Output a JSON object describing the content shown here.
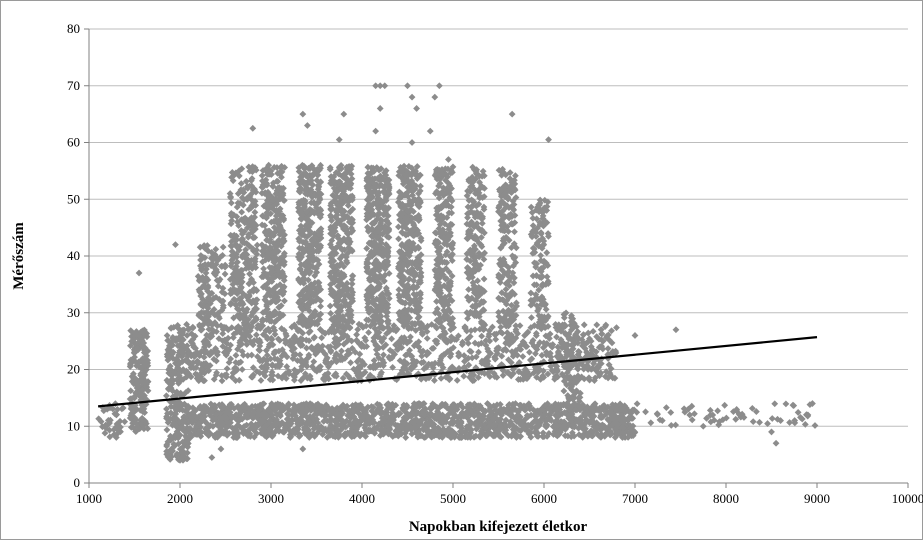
{
  "chart_data": {
    "type": "scatter",
    "title": "",
    "xlabel": "Napokban kifejezett  életkor",
    "ylabel": "Mérőszám",
    "xlim": [
      1000,
      10000
    ],
    "ylim": [
      0,
      80
    ],
    "x_ticks": [
      "1000",
      "2000",
      "3000",
      "4000",
      "5000",
      "6000",
      "7000",
      "8000",
      "9000",
      "10000"
    ],
    "y_ticks": [
      "0",
      "10",
      "20",
      "30",
      "40",
      "50",
      "60",
      "70",
      "80"
    ],
    "grid": "horizontal",
    "legend": "none",
    "marker": "diamond",
    "point_color": "#8c8c8c",
    "trendline_color": "#000000",
    "trendline": {
      "x": [
        1100,
        9000
      ],
      "y": [
        13.5,
        25.7
      ]
    },
    "clusters": [
      {
        "x_range": [
          1100,
          1400
        ],
        "y_range": [
          8,
          14
        ],
        "count": 40
      },
      {
        "x_range": [
          1450,
          1650
        ],
        "y_range": [
          9,
          27
        ],
        "count": 180
      },
      {
        "x_range": [
          1850,
          2100
        ],
        "y_range": [
          4,
          28
        ],
        "count": 260
      },
      {
        "x_range": [
          2100,
          7000
        ],
        "y_range": [
          8,
          14
        ],
        "count": 1600
      },
      {
        "x_range": [
          2100,
          6800
        ],
        "y_range": [
          18,
          28
        ],
        "count": 1100
      },
      {
        "x_range": [
          2200,
          2500
        ],
        "y_range": [
          28,
          42
        ],
        "count": 120
      },
      {
        "x_range": [
          2550,
          2850
        ],
        "y_range": [
          28,
          56
        ],
        "count": 260
      },
      {
        "x_range": [
          2900,
          3150
        ],
        "y_range": [
          28,
          56
        ],
        "count": 320
      },
      {
        "x_range": [
          3300,
          3550
        ],
        "y_range": [
          28,
          56
        ],
        "count": 340
      },
      {
        "x_range": [
          3650,
          3900
        ],
        "y_range": [
          28,
          56
        ],
        "count": 320
      },
      {
        "x_range": [
          4050,
          4300
        ],
        "y_range": [
          28,
          56
        ],
        "count": 360
      },
      {
        "x_range": [
          4400,
          4650
        ],
        "y_range": [
          28,
          56
        ],
        "count": 320
      },
      {
        "x_range": [
          4800,
          5000
        ],
        "y_range": [
          28,
          56
        ],
        "count": 220
      },
      {
        "x_range": [
          5150,
          5350
        ],
        "y_range": [
          28,
          56
        ],
        "count": 180
      },
      {
        "x_range": [
          5500,
          5700
        ],
        "y_range": [
          28,
          56
        ],
        "count": 170
      },
      {
        "x_range": [
          5850,
          6050
        ],
        "y_range": [
          28,
          50
        ],
        "count": 120
      },
      {
        "x_range": [
          6200,
          6400
        ],
        "y_range": [
          14,
          30
        ],
        "count": 80
      },
      {
        "x_range": [
          7000,
          9000
        ],
        "y_range": [
          10,
          14
        ],
        "count": 60
      }
    ],
    "points": [
      [
        2800,
        62.5
      ],
      [
        3350,
        65
      ],
      [
        3400,
        63
      ],
      [
        3800,
        65
      ],
      [
        3750,
        60.5
      ],
      [
        4150,
        70
      ],
      [
        4200,
        70
      ],
      [
        4250,
        70
      ],
      [
        4200,
        66
      ],
      [
        4150,
        62
      ],
      [
        4500,
        70
      ],
      [
        4550,
        68
      ],
      [
        4600,
        66
      ],
      [
        4550,
        60
      ],
      [
        4850,
        70
      ],
      [
        4800,
        68
      ],
      [
        4750,
        62
      ],
      [
        5650,
        65
      ],
      [
        6050,
        60.5
      ],
      [
        4950,
        57
      ],
      [
        1550,
        37
      ],
      [
        1950,
        42
      ],
      [
        7450,
        27
      ],
      [
        7000,
        26
      ],
      [
        8500,
        9
      ],
      [
        8550,
        7
      ],
      [
        8600,
        11
      ],
      [
        8900,
        12
      ],
      [
        8950,
        14
      ],
      [
        8150,
        12
      ],
      [
        7750,
        10
      ],
      [
        7300,
        11
      ],
      [
        6650,
        25
      ],
      [
        6750,
        23
      ],
      [
        2350,
        4.5
      ],
      [
        2000,
        4
      ],
      [
        2450,
        6
      ],
      [
        3350,
        6
      ],
      [
        1300,
        12
      ],
      [
        1200,
        13
      ]
    ]
  }
}
